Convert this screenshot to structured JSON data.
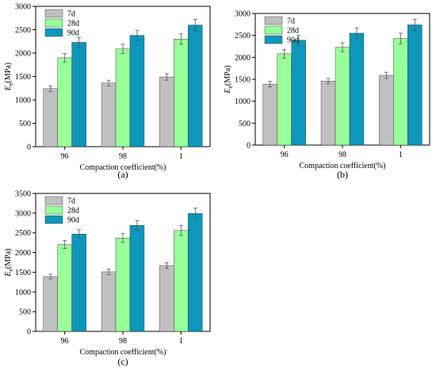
{
  "colors": {
    "7d": "#c0c0c0",
    "28d": "#99ff99",
    "90d": "#0d97bb",
    "axis": "#000000",
    "error_bar": "#555555"
  },
  "chart_data": [
    {
      "type": "bar",
      "panel_label": "(a)",
      "categories": [
        "96",
        "98",
        "1"
      ],
      "xlabel": "Compaction coefficient(%)",
      "ylabel_main": "E",
      "ylabel_sub": "e",
      "ylabel_unit": "(MPa)",
      "ylim": [
        0,
        3000
      ],
      "yticks": [
        0,
        500,
        1000,
        1500,
        2000,
        2500,
        3000
      ],
      "legend_position": "top-left",
      "series": [
        {
          "name": "7d",
          "values": [
            1240,
            1360,
            1490
          ],
          "errors": [
            60,
            60,
            70
          ]
        },
        {
          "name": "28d",
          "values": [
            1900,
            2090,
            2300
          ],
          "errors": [
            90,
            100,
            110
          ]
        },
        {
          "name": "90d",
          "values": [
            2230,
            2380,
            2600
          ],
          "errors": [
            100,
            110,
            120
          ]
        }
      ]
    },
    {
      "type": "bar",
      "panel_label": "(b)",
      "categories": [
        "96",
        "98",
        "1"
      ],
      "xlabel": "Compaction coefficient(%)",
      "ylabel_main": "E",
      "ylabel_sub": "e",
      "ylabel_unit": "(MPa)",
      "ylim": [
        0,
        3000
      ],
      "yticks": [
        0,
        500,
        1000,
        1500,
        2000,
        2500,
        3000
      ],
      "legend_position": "top-left",
      "series": [
        {
          "name": "7d",
          "values": [
            1390,
            1460,
            1590
          ],
          "errors": [
            60,
            60,
            70
          ]
        },
        {
          "name": "28d",
          "values": [
            2080,
            2230,
            2430
          ],
          "errors": [
            100,
            100,
            120
          ]
        },
        {
          "name": "90d",
          "values": [
            2390,
            2550,
            2740
          ],
          "errors": [
            110,
            120,
            130
          ]
        }
      ]
    },
    {
      "type": "bar",
      "panel_label": "(c)",
      "categories": [
        "96",
        "98",
        "1"
      ],
      "xlabel": "Compaction coefficient(%)",
      "ylabel_main": "E",
      "ylabel_sub": "e",
      "ylabel_unit": "(MPa)",
      "ylim": [
        0,
        3500
      ],
      "yticks": [
        0,
        500,
        1000,
        1500,
        2000,
        2500,
        3000,
        3500
      ],
      "legend_position": "top-left",
      "series": [
        {
          "name": "7d",
          "values": [
            1390,
            1510,
            1670
          ],
          "errors": [
            60,
            70,
            70
          ]
        },
        {
          "name": "28d",
          "values": [
            2200,
            2370,
            2560
          ],
          "errors": [
            100,
            110,
            130
          ]
        },
        {
          "name": "90d",
          "values": [
            2470,
            2690,
            2990
          ],
          "errors": [
            110,
            120,
            140
          ]
        }
      ]
    }
  ]
}
